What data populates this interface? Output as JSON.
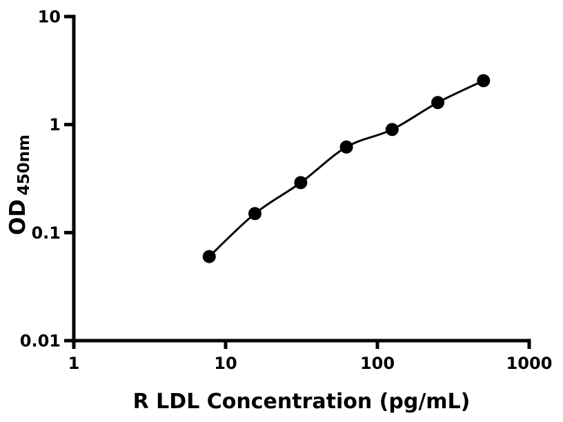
{
  "chart_data": {
    "type": "scatter",
    "subtype": "standard-curve-with-fitted-line",
    "xlabel": "R LDL Concentration (pg/mL)",
    "ylabel_main": "OD",
    "ylabel_sub": "450nm",
    "x_scale": "log",
    "y_scale": "log",
    "xlim": [
      1,
      1000
    ],
    "ylim": [
      0.01,
      10
    ],
    "x_ticks": [
      1,
      10,
      100,
      1000
    ],
    "x_tick_labels": [
      "1",
      "10",
      "100",
      "1000"
    ],
    "y_ticks": [
      0.01,
      0.1,
      1,
      10
    ],
    "y_tick_labels": [
      "0.01",
      "0.1",
      "1",
      "10"
    ],
    "x": [
      7.8,
      15.6,
      31.25,
      62.5,
      125,
      250,
      500
    ],
    "y": [
      0.06,
      0.15,
      0.29,
      0.62,
      0.9,
      1.6,
      2.55
    ],
    "grid": "off",
    "legend": "none",
    "marker_color": "#000000",
    "line_color": "#000000",
    "axis_color": "#000000",
    "background_color": "#ffffff"
  }
}
